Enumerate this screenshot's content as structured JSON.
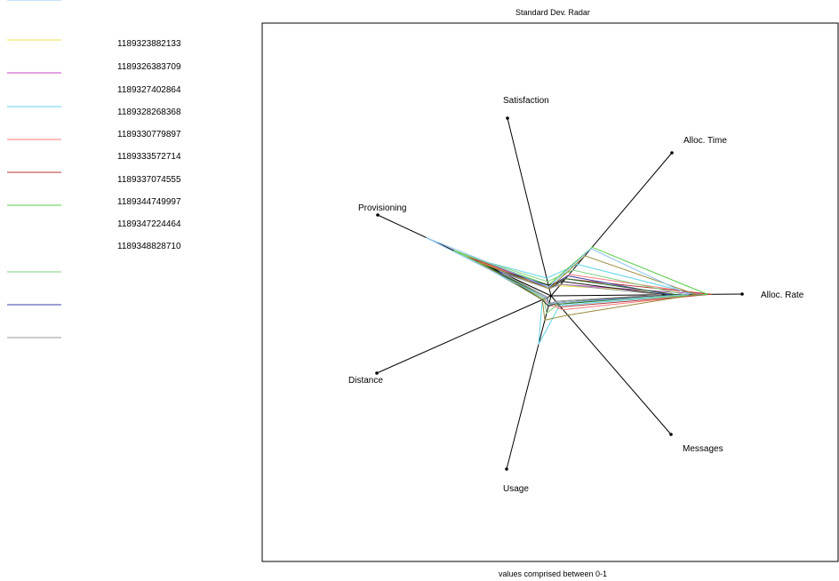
{
  "chart_data": {
    "type": "radar",
    "title": "Standard Dev. Radar",
    "caption": "values comprised between 0-1",
    "axes": [
      "Alloc. Rate",
      "Alloc. Time",
      "Satisfaction",
      "Provisioning",
      "Distance",
      "Usage",
      "Messages"
    ],
    "range": [
      0,
      1
    ],
    "grid": false,
    "legend_position": "left",
    "legend": [
      {
        "name": "1189323882133",
        "color": "#f2e64a"
      },
      {
        "name": "1189326383709",
        "color": "#c04ac8"
      },
      {
        "name": "1189327402864",
        "color": "#5fd3e8"
      },
      {
        "name": "1189328268368",
        "color": "#ff7a7a"
      },
      {
        "name": "1189330779897",
        "color": "#b33a3a"
      },
      {
        "name": "1189333572714",
        "color": "#55cc44"
      },
      {
        "name": "1189337074555",
        "color": "#7fd07a"
      },
      {
        "name": "1189344749997",
        "color": "#3c3ca8"
      },
      {
        "name": "1189347224464",
        "color": ""
      },
      {
        "name": "1189348828710",
        "color": ""
      },
      {
        "name": "",
        "color": "#9a9a9a"
      },
      {
        "name": "",
        "color": "#9a8a3a"
      },
      {
        "name": "",
        "color": "#8ec3ef"
      }
    ],
    "series": [
      {
        "color": "#f2e64a",
        "values": [
          0.84,
          0.07,
          0.06,
          0.52,
          0.03,
          0.05,
          0.04
        ]
      },
      {
        "color": "#c04ac8",
        "values": [
          0.8,
          0.08,
          0.05,
          0.5,
          0.02,
          0.06,
          0.05
        ]
      },
      {
        "color": "#5fd3e8",
        "values": [
          0.76,
          0.22,
          0.1,
          0.48,
          0.05,
          0.28,
          0.07
        ]
      },
      {
        "color": "#ff7a7a",
        "values": [
          0.82,
          0.15,
          0.04,
          0.5,
          0.04,
          0.05,
          0.1
        ]
      },
      {
        "color": "#b33a3a",
        "values": [
          0.84,
          0.12,
          0.06,
          0.48,
          0.03,
          0.04,
          0.08
        ]
      },
      {
        "color": "#55cc44",
        "values": [
          0.82,
          0.34,
          0.06,
          0.56,
          0.02,
          0.06,
          0.05
        ]
      },
      {
        "color": "#7fd07a",
        "values": [
          0.7,
          0.18,
          0.08,
          0.52,
          0.04,
          0.1,
          0.06
        ]
      },
      {
        "color": "#3c3ca8",
        "values": [
          0.62,
          0.14,
          0.05,
          0.3,
          0.02,
          0.05,
          0.04
        ]
      },
      {
        "color": "#1a1a1a",
        "values": [
          0.6,
          0.1,
          0.06,
          0.35,
          0.05,
          0.06,
          0.05
        ]
      },
      {
        "color": "#2f6f2f",
        "values": [
          0.66,
          0.12,
          0.04,
          0.4,
          0.03,
          0.04,
          0.06
        ]
      },
      {
        "color": "#9a9a9a",
        "values": [
          0.58,
          0.08,
          0.04,
          0.28,
          0.02,
          0.05,
          0.04
        ]
      },
      {
        "color": "#9a8a3a",
        "values": [
          0.76,
          0.28,
          0.04,
          0.42,
          0.05,
          0.14,
          0.14
        ]
      },
      {
        "color": "#8ec3ef",
        "values": [
          0.72,
          0.33,
          0.05,
          0.72,
          0.03,
          0.05,
          0.05
        ]
      }
    ]
  }
}
